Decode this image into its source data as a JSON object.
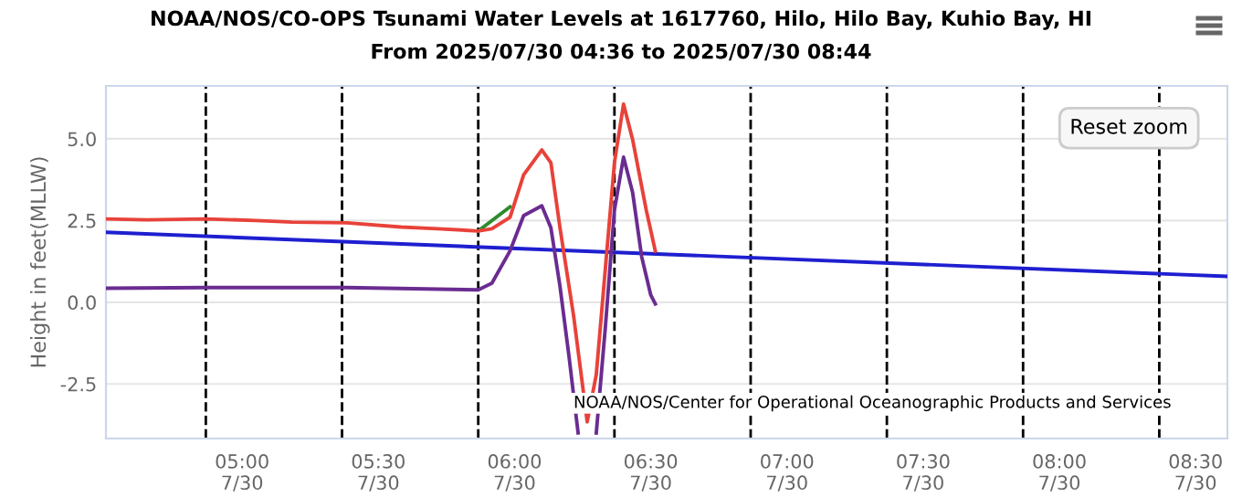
{
  "chart_data": {
    "type": "line",
    "title": "NOAA/NOS/CO-OPS Tsunami Water Levels at 1617760, Hilo, Hilo Bay, Kuhio Bay, HI",
    "subtitle": "From 2025/07/30 04:36 to 2025/07/30 08:44",
    "ylabel": "Height in feet(MLLW)",
    "annotations": [
      "NOAA/NOS/Center for Operational Oceanographic Products and Services",
      "Reset zoom"
    ],
    "xlim": [
      "2025-07-30T04:30",
      "2025-07-30T08:37"
    ],
    "ylim": [
      -4.17,
      6.62
    ],
    "xticks": [
      {
        "value": "2025-07-30T05:00",
        "label": "05:00\n7/30"
      },
      {
        "value": "2025-07-30T05:30",
        "label": "05:30\n7/30"
      },
      {
        "value": "2025-07-30T06:00",
        "label": "06:00\n7/30"
      },
      {
        "value": "2025-07-30T06:30",
        "label": "06:30\n7/30"
      },
      {
        "value": "2025-07-30T07:00",
        "label": "07:00\n7/30"
      },
      {
        "value": "2025-07-30T07:30",
        "label": "07:30\n7/30"
      },
      {
        "value": "2025-07-30T08:00",
        "label": "08:00\n7/30"
      },
      {
        "value": "2025-07-30T08:30",
        "label": "08:30\n7/30"
      }
    ],
    "yticks": [
      {
        "value": -2.5,
        "label": "-2.5"
      },
      {
        "value": 0,
        "label": "0.0"
      },
      {
        "value": 2.5,
        "label": "2.5"
      },
      {
        "value": 5,
        "label": "5.0"
      }
    ],
    "grid": "y",
    "legend": false,
    "marker": "none",
    "line_style": "solid",
    "ref_lines": [
      {
        "axis": "x",
        "value": "2025-07-30T04:52",
        "line_style": "dashed",
        "color": "#000000"
      },
      {
        "axis": "x",
        "value": "2025-07-30T05:22",
        "line_style": "dashed",
        "color": "#000000"
      },
      {
        "axis": "x",
        "value": "2025-07-30T05:52",
        "line_style": "dashed",
        "color": "#000000"
      },
      {
        "axis": "x",
        "value": "2025-07-30T06:22",
        "line_style": "dashed",
        "color": "#000000"
      },
      {
        "axis": "x",
        "value": "2025-07-30T06:52",
        "line_style": "dashed",
        "color": "#000000"
      },
      {
        "axis": "x",
        "value": "2025-07-30T07:22",
        "line_style": "dashed",
        "color": "#000000"
      },
      {
        "axis": "x",
        "value": "2025-07-30T07:52",
        "line_style": "dashed",
        "color": "#000000"
      },
      {
        "axis": "x",
        "value": "2025-07-30T08:22",
        "line_style": "dashed",
        "color": "#000000"
      }
    ],
    "series": [
      {
        "color": "#1f1fd0",
        "x": [
          "2025-07-30T04:30",
          "2025-07-30T08:37"
        ],
        "values": [
          2.14,
          0.79
        ]
      },
      {
        "color": "#2e8b2e",
        "x": [
          "2025-07-30T05:52",
          "2025-07-30T05:59"
        ],
        "values": [
          2.18,
          2.92
        ]
      },
      {
        "color": "#e8423a",
        "x": [
          "2025-07-30T04:30",
          "2025-07-30T04:39",
          "2025-07-30T04:52",
          "2025-07-30T05:03",
          "2025-07-30T05:11",
          "2025-07-30T05:23",
          "2025-07-30T05:35",
          "2025-07-30T05:43",
          "2025-07-30T05:52",
          "2025-07-30T05:55",
          "2025-07-30T05:59",
          "2025-07-30T06:02",
          "2025-07-30T06:06",
          "2025-07-30T06:08",
          "2025-07-30T06:10",
          "2025-07-30T06:13",
          "2025-07-30T06:15",
          "2025-07-30T06:16",
          "2025-07-30T06:18",
          "2025-07-30T06:20",
          "2025-07-30T06:22",
          "2025-07-30T06:24",
          "2025-07-30T06:26",
          "2025-07-30T06:29",
          "2025-07-30T06:31"
        ],
        "values": [
          2.55,
          2.52,
          2.55,
          2.5,
          2.45,
          2.43,
          2.3,
          2.25,
          2.18,
          2.25,
          2.6,
          3.9,
          4.66,
          4.27,
          2.28,
          -0.41,
          -2.57,
          -3.66,
          -2.21,
          1.03,
          4.27,
          6.06,
          4.98,
          2.82,
          1.57
        ]
      },
      {
        "color": "#6a2c91",
        "x": [
          "2025-07-30T04:30",
          "2025-07-30T04:52",
          "2025-07-30T05:23",
          "2025-07-30T05:52",
          "2025-07-30T05:55",
          "2025-07-30T05:59",
          "2025-07-30T06:02",
          "2025-07-30T06:06",
          "2025-07-30T06:08",
          "2025-07-30T06:10",
          "2025-07-30T06:12",
          "2025-07-30T06:14",
          "2025-07-30T06:16",
          "2025-07-30T06:18",
          "2025-07-30T06:20",
          "2025-07-30T06:22",
          "2025-07-30T06:24",
          "2025-07-30T06:26",
          "2025-07-30T06:28",
          "2025-07-30T06:30",
          "2025-07-30T06:31"
        ],
        "values": [
          0.43,
          0.45,
          0.45,
          0.38,
          0.58,
          1.57,
          2.65,
          2.95,
          2.28,
          0.49,
          -1.67,
          -4.0,
          null,
          -4.0,
          -0.76,
          2.82,
          4.44,
          3.36,
          1.39,
          0.22,
          -0.05
        ]
      }
    ]
  }
}
